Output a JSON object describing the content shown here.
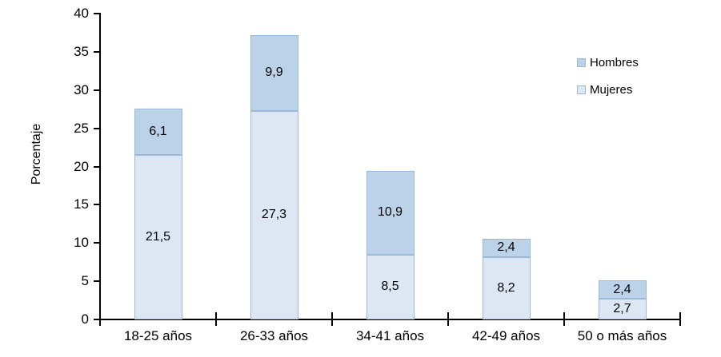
{
  "chart_data": {
    "type": "bar",
    "stacked": true,
    "title": "",
    "ylabel": "Porcentaje",
    "xlabel": "",
    "ylim": [
      0,
      40
    ],
    "yticks": [
      0,
      5,
      10,
      15,
      20,
      25,
      30,
      35,
      40
    ],
    "grid": false,
    "background": "#ffffff",
    "axis_color": "#000000",
    "categories": [
      "18-25 años",
      "26-33 años",
      "34-41 años",
      "42-49 años",
      "50 o más años"
    ],
    "series": [
      {
        "name": "Mujeres",
        "color": "#dce7f3",
        "border_color": "#9ab8d9",
        "values": [
          21.5,
          27.3,
          8.5,
          8.2,
          2.7
        ],
        "labels": [
          "21,5",
          "27,3",
          "8,5",
          "8,2",
          "2,7"
        ]
      },
      {
        "name": "Hombres",
        "color": "#bcd2e9",
        "border_color": "#9ab8d9",
        "values": [
          6.1,
          9.9,
          10.9,
          2.4,
          2.4
        ],
        "labels": [
          "6,1",
          "9,9",
          "10,9",
          "2,4",
          "2,4"
        ]
      }
    ],
    "legend_position": "top-right",
    "legend_order": [
      "Hombres",
      "Mujeres"
    ]
  }
}
